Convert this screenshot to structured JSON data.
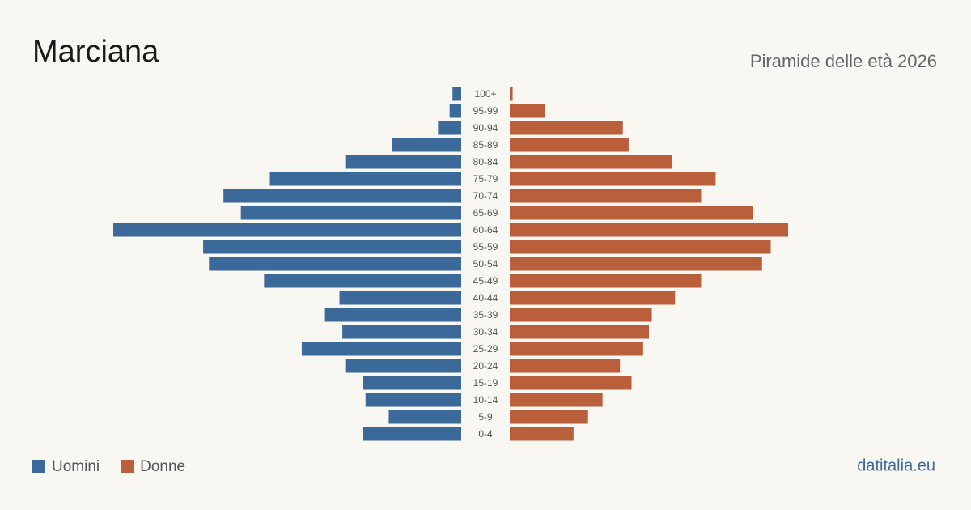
{
  "chart_data": {
    "type": "population-pyramid",
    "title": "Marciana",
    "subtitle": "Piramide delle età 2026",
    "source": "datitalia.eu",
    "categories": [
      "100+",
      "95-99",
      "90-94",
      "85-89",
      "80-84",
      "75-79",
      "70-74",
      "65-69",
      "60-64",
      "55-59",
      "50-54",
      "45-49",
      "40-44",
      "35-39",
      "30-34",
      "25-29",
      "20-24",
      "15-19",
      "10-14",
      "5-9",
      "0-4"
    ],
    "series": [
      {
        "name": "Uomini",
        "color": "#3b6a9a",
        "values": [
          3,
          4,
          8,
          24,
          40,
          66,
          82,
          76,
          120,
          89,
          87,
          68,
          42,
          47,
          41,
          55,
          40,
          34,
          33,
          25,
          34
        ]
      },
      {
        "name": "Donne",
        "color": "#b95f3c",
        "values": [
          1,
          12,
          39,
          41,
          56,
          71,
          66,
          84,
          96,
          90,
          87,
          66,
          57,
          49,
          48,
          46,
          38,
          42,
          32,
          27,
          22
        ]
      }
    ]
  }
}
